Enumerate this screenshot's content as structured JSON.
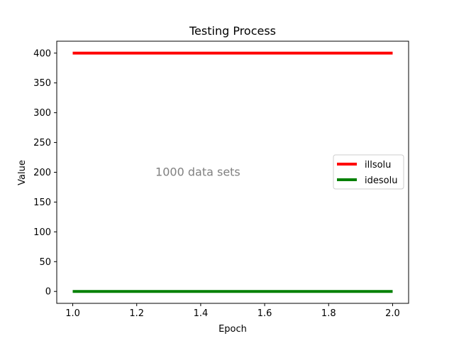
{
  "chart_data": {
    "type": "line",
    "title": "Testing Process",
    "xlabel": "Epoch",
    "ylabel": "Value",
    "xlim": [
      0.95,
      2.05
    ],
    "ylim": [
      -20,
      420
    ],
    "xticks": [
      1.0,
      1.2,
      1.4,
      1.6,
      1.8,
      2.0
    ],
    "xtick_labels": [
      "1.0",
      "1.2",
      "1.4",
      "1.6",
      "1.8",
      "2.0"
    ],
    "yticks": [
      0,
      50,
      100,
      150,
      200,
      250,
      300,
      350,
      400
    ],
    "ytick_labels": [
      "0",
      "50",
      "100",
      "150",
      "200",
      "250",
      "300",
      "350",
      "400"
    ],
    "grid": false,
    "legend_position": "center-right",
    "series": [
      {
        "name": "illsolu",
        "color": "#ff0000",
        "x": [
          1.0,
          2.0
        ],
        "y": [
          400,
          400
        ]
      },
      {
        "name": "idesolu",
        "color": "#008000",
        "x": [
          1.0,
          2.0
        ],
        "y": [
          0,
          0
        ]
      }
    ],
    "annotations": [
      {
        "text": "1000 data sets",
        "x": 1.4,
        "y": 200,
        "color": "#808080"
      }
    ]
  }
}
